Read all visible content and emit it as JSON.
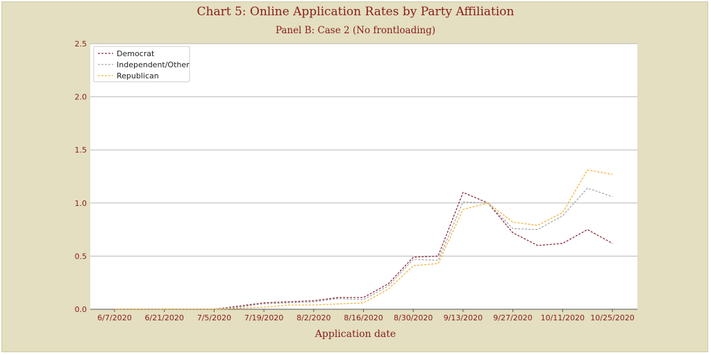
{
  "chart_data": {
    "type": "line",
    "title": "Chart 5: Online Application Rates by Party Affiliation",
    "subtitle": "Panel B: Case 2 (No frontloading)",
    "xlabel": "Application date",
    "ylabel": "",
    "ylim": [
      0,
      2.5
    ],
    "yticks": [
      "0.0",
      "0.5",
      "1.0",
      "1.5",
      "2.0",
      "2.5"
    ],
    "grid": "horizontal",
    "legend_position": "top-left",
    "x": [
      "6/7/2020",
      "6/14/2020",
      "6/21/2020",
      "6/28/2020",
      "7/5/2020",
      "7/12/2020",
      "7/19/2020",
      "7/26/2020",
      "8/2/2020",
      "8/9/2020",
      "8/16/2020",
      "8/23/2020",
      "8/30/2020",
      "9/6/2020",
      "9/13/2020",
      "9/20/2020",
      "9/27/2020",
      "10/4/2020",
      "10/11/2020",
      "10/18/2020",
      "10/25/2020"
    ],
    "xtick_labels": [
      "6/7/2020",
      "6/21/2020",
      "7/5/2020",
      "7/19/2020",
      "8/2/2020",
      "8/16/2020",
      "8/30/2020",
      "9/13/2020",
      "9/27/2020",
      "10/11/2020",
      "10/25/2020"
    ],
    "series": [
      {
        "name": "Democrat",
        "color": "#8b2a3a",
        "values": [
          0.0,
          0.0,
          0.0,
          0.0,
          0.0,
          0.03,
          0.06,
          0.07,
          0.08,
          0.11,
          0.11,
          0.24,
          0.49,
          0.5,
          1.1,
          1.0,
          0.72,
          0.6,
          0.62,
          0.75,
          0.62
        ]
      },
      {
        "name": "Independent/Other",
        "color": "#a8a8a8",
        "values": [
          0.0,
          0.0,
          0.0,
          0.0,
          0.0,
          0.02,
          0.05,
          0.06,
          0.07,
          0.1,
          0.09,
          0.22,
          0.47,
          0.46,
          1.01,
          1.0,
          0.76,
          0.75,
          0.88,
          1.14,
          1.06
        ]
      },
      {
        "name": "Republican",
        "color": "#f2b33d",
        "values": [
          0.0,
          0.0,
          0.0,
          0.0,
          0.0,
          0.01,
          0.02,
          0.04,
          0.04,
          0.05,
          0.06,
          0.19,
          0.41,
          0.43,
          0.94,
          1.0,
          0.82,
          0.79,
          0.91,
          1.31,
          1.27
        ]
      }
    ]
  }
}
